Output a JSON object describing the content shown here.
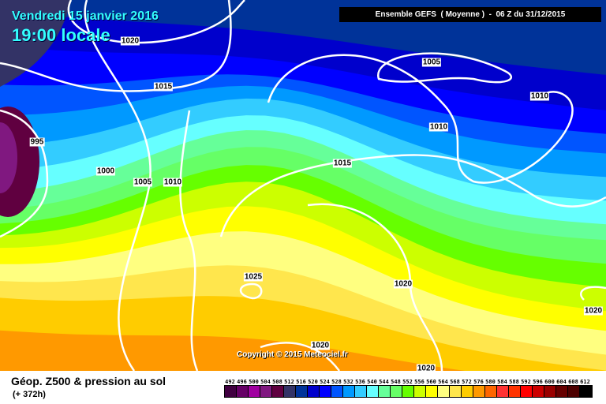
{
  "title": {
    "date": "Vendredi 15 janvier 2016",
    "time": "19:00 locale"
  },
  "header": "Ensemble GEFS  ( Moyenne )  -  06 Z du 31/12/2015",
  "copyright": "Copyright © 2015 Meteociel.fr",
  "footer": {
    "title": "Géop. Z500 & pression au sol",
    "lead": "(+ 372h)"
  },
  "isobar_labels": [
    "1020",
    "1015",
    "1005",
    "1010",
    "1010",
    "995",
    "1000",
    "1005",
    "1010",
    "1015",
    "1025",
    "1020",
    "1020",
    "1020",
    "1020"
  ],
  "legend": {
    "levels": [
      "492",
      "496",
      "500",
      "504",
      "508",
      "512",
      "516",
      "520",
      "524",
      "528",
      "532",
      "536",
      "540",
      "544",
      "548",
      "552",
      "556",
      "560",
      "564",
      "568",
      "572",
      "576",
      "580",
      "584",
      "588",
      "592",
      "596",
      "600",
      "604",
      "608",
      "612"
    ],
    "colors": [
      "#400040",
      "#660066",
      "#a000a0",
      "#801880",
      "#600040",
      "#333366",
      "#003399",
      "#0000cc",
      "#0000ff",
      "#0055ff",
      "#0099ff",
      "#33ccff",
      "#66ffff",
      "#66ff99",
      "#66ff66",
      "#66ff00",
      "#ccff00",
      "#ffff00",
      "#ffff80",
      "#ffe64d",
      "#ffcc00",
      "#ff9900",
      "#ff6600",
      "#ff3333",
      "#ff3300",
      "#ff0000",
      "#cc0000",
      "#990000",
      "#660000",
      "#4d0000",
      "#000000"
    ]
  }
}
